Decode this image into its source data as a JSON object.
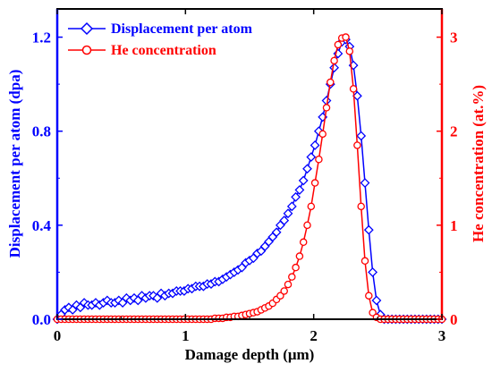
{
  "chart_data": {
    "type": "line",
    "xlabel": "Damage depth (μm)",
    "ylabel": "Displacement per atom (dpa)",
    "ylabel_right": "He concentration (at.%)",
    "xlim": [
      0,
      3
    ],
    "ylim": [
      0,
      1.32
    ],
    "ylim_right": [
      0,
      3.3
    ],
    "x_ticks": [
      "0",
      "1",
      "2",
      "3"
    ],
    "y_ticks": [
      "0.0",
      "0.4",
      "0.8",
      "1.2"
    ],
    "y_ticks_right": [
      "0",
      "1",
      "2",
      "3"
    ],
    "legend_position": "top-left",
    "grid": false,
    "colors": {
      "dpa": "#0000ff",
      "he": "#ff0000",
      "axes": "#000000"
    },
    "series": [
      {
        "name": "Displacement per atom",
        "axis": "left",
        "marker": "diamond",
        "color": "#0000ff",
        "x": [
          0.0,
          0.03,
          0.06,
          0.09,
          0.12,
          0.15,
          0.18,
          0.21,
          0.24,
          0.27,
          0.3,
          0.33,
          0.36,
          0.39,
          0.42,
          0.45,
          0.48,
          0.51,
          0.54,
          0.57,
          0.6,
          0.63,
          0.66,
          0.69,
          0.72,
          0.75,
          0.78,
          0.81,
          0.84,
          0.87,
          0.9,
          0.93,
          0.96,
          0.99,
          1.02,
          1.05,
          1.08,
          1.11,
          1.14,
          1.17,
          1.2,
          1.23,
          1.26,
          1.29,
          1.32,
          1.35,
          1.38,
          1.41,
          1.44,
          1.47,
          1.5,
          1.53,
          1.56,
          1.59,
          1.62,
          1.65,
          1.68,
          1.71,
          1.74,
          1.77,
          1.8,
          1.83,
          1.86,
          1.89,
          1.92,
          1.95,
          1.98,
          2.01,
          2.04,
          2.07,
          2.1,
          2.13,
          2.16,
          2.19,
          2.22,
          2.25,
          2.28,
          2.31,
          2.34,
          2.37,
          2.4,
          2.43,
          2.46,
          2.49,
          2.52,
          2.55,
          2.58,
          2.61,
          2.64,
          2.67,
          2.7,
          2.73,
          2.76,
          2.79,
          2.82,
          2.85,
          2.88,
          2.91,
          2.94,
          2.97,
          3.0
        ],
        "values": [
          0.0,
          0.02,
          0.04,
          0.05,
          0.04,
          0.06,
          0.05,
          0.07,
          0.06,
          0.06,
          0.07,
          0.06,
          0.07,
          0.08,
          0.07,
          0.07,
          0.08,
          0.07,
          0.09,
          0.08,
          0.09,
          0.08,
          0.1,
          0.09,
          0.1,
          0.1,
          0.09,
          0.11,
          0.1,
          0.11,
          0.11,
          0.12,
          0.12,
          0.12,
          0.13,
          0.13,
          0.14,
          0.14,
          0.14,
          0.15,
          0.15,
          0.16,
          0.16,
          0.17,
          0.18,
          0.19,
          0.2,
          0.21,
          0.22,
          0.24,
          0.25,
          0.26,
          0.28,
          0.29,
          0.31,
          0.33,
          0.35,
          0.37,
          0.4,
          0.42,
          0.45,
          0.48,
          0.52,
          0.55,
          0.59,
          0.64,
          0.69,
          0.74,
          0.8,
          0.86,
          0.93,
          1.0,
          1.07,
          1.13,
          1.18,
          1.19,
          1.16,
          1.08,
          0.95,
          0.78,
          0.58,
          0.38,
          0.2,
          0.08,
          0.02,
          0.0,
          0.0,
          0.0,
          0.0,
          0.0,
          0.0,
          0.0,
          0.0,
          0.0,
          0.0,
          0.0,
          0.0,
          0.0,
          0.0,
          0.0,
          0.0
        ]
      },
      {
        "name": "He concentration",
        "axis": "right",
        "marker": "circle",
        "color": "#ff0000",
        "x": [
          0.0,
          0.03,
          0.06,
          0.09,
          0.12,
          0.15,
          0.18,
          0.21,
          0.24,
          0.27,
          0.3,
          0.33,
          0.36,
          0.39,
          0.42,
          0.45,
          0.48,
          0.51,
          0.54,
          0.57,
          0.6,
          0.63,
          0.66,
          0.69,
          0.72,
          0.75,
          0.78,
          0.81,
          0.84,
          0.87,
          0.9,
          0.93,
          0.96,
          0.99,
          1.02,
          1.05,
          1.08,
          1.11,
          1.14,
          1.17,
          1.2,
          1.23,
          1.26,
          1.29,
          1.32,
          1.35,
          1.38,
          1.41,
          1.44,
          1.47,
          1.5,
          1.53,
          1.56,
          1.59,
          1.62,
          1.65,
          1.68,
          1.71,
          1.74,
          1.77,
          1.8,
          1.83,
          1.86,
          1.89,
          1.92,
          1.95,
          1.98,
          2.01,
          2.04,
          2.07,
          2.1,
          2.13,
          2.16,
          2.19,
          2.22,
          2.25,
          2.28,
          2.31,
          2.34,
          2.37,
          2.4,
          2.43,
          2.46,
          2.49,
          2.52,
          2.55,
          2.58,
          2.61,
          2.64,
          2.67,
          2.7,
          2.73,
          2.76,
          2.79,
          2.82,
          2.85,
          2.88,
          2.91,
          2.94,
          2.97,
          3.0
        ],
        "values": [
          0.0,
          0.0,
          0.0,
          0.0,
          0.0,
          0.0,
          0.0,
          0.0,
          0.0,
          0.0,
          0.0,
          0.0,
          0.0,
          0.0,
          0.0,
          0.0,
          0.0,
          0.0,
          0.0,
          0.0,
          0.0,
          0.0,
          0.0,
          0.0,
          0.0,
          0.0,
          0.0,
          0.0,
          0.0,
          0.0,
          0.0,
          0.0,
          0.0,
          0.0,
          0.0,
          0.0,
          0.0,
          0.0,
          0.0,
          0.0,
          0.0,
          0.01,
          0.01,
          0.01,
          0.02,
          0.02,
          0.03,
          0.03,
          0.04,
          0.05,
          0.06,
          0.07,
          0.08,
          0.1,
          0.12,
          0.14,
          0.17,
          0.21,
          0.25,
          0.3,
          0.37,
          0.45,
          0.55,
          0.67,
          0.82,
          1.0,
          1.2,
          1.45,
          1.7,
          1.97,
          2.25,
          2.52,
          2.75,
          2.92,
          2.99,
          3.0,
          2.85,
          2.45,
          1.85,
          1.2,
          0.62,
          0.25,
          0.07,
          0.02,
          0.0,
          0.0,
          0.0,
          0.0,
          0.0,
          0.0,
          0.0,
          0.0,
          0.0,
          0.0,
          0.0,
          0.0,
          0.0,
          0.0,
          0.0,
          0.0,
          0.0
        ]
      }
    ]
  }
}
